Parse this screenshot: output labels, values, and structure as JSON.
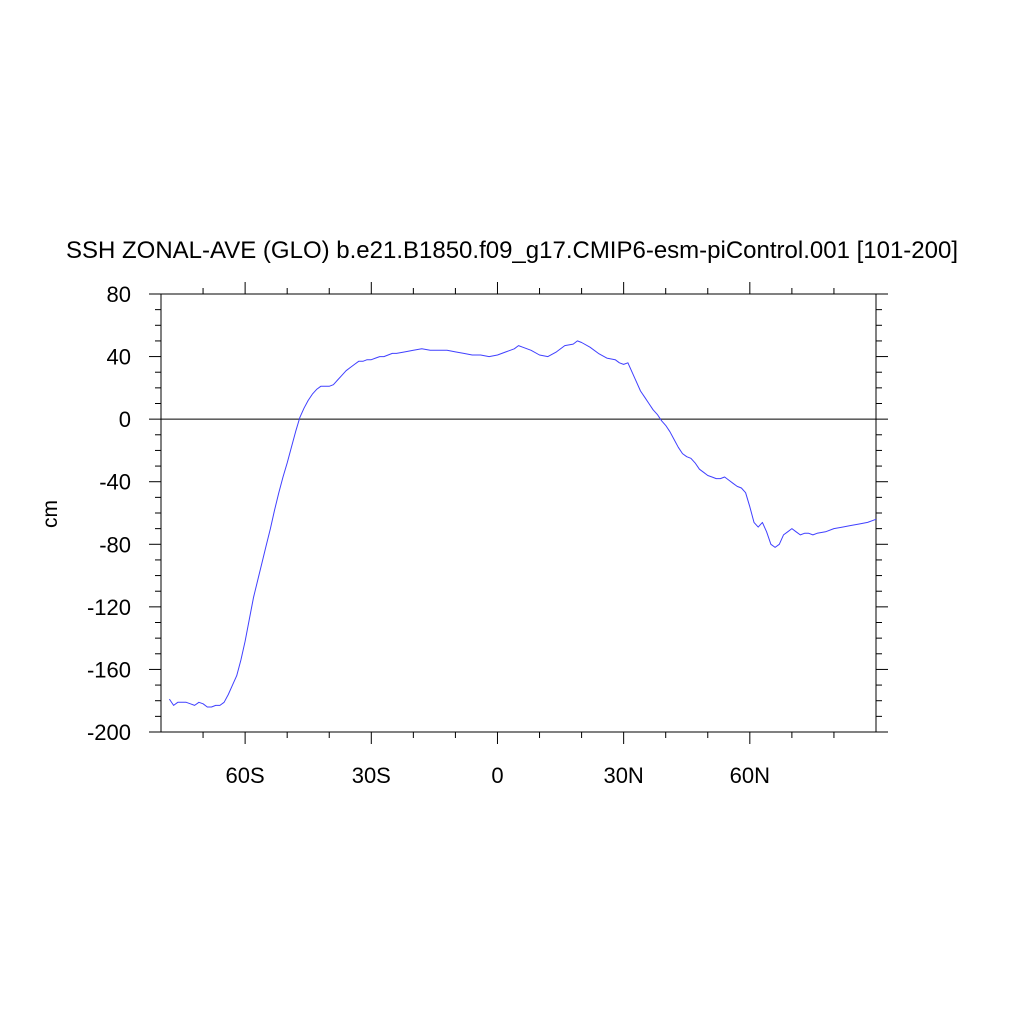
{
  "chart_data": {
    "type": "line",
    "title": "SSH ZONAL-AVE (GLO) b.e21.B1850.f09_g17.CMIP6-esm-piControl.001 [101-200]",
    "xlabel": "",
    "ylabel": "cm",
    "xlim": [
      -80,
      90
    ],
    "ylim": [
      -200,
      80
    ],
    "x_ticks": [
      {
        "value": -60,
        "label": "60S"
      },
      {
        "value": -30,
        "label": "30S"
      },
      {
        "value": 0,
        "label": "0"
      },
      {
        "value": 30,
        "label": "30N"
      },
      {
        "value": 60,
        "label": "60N"
      }
    ],
    "y_ticks": [
      {
        "value": 80,
        "label": "80"
      },
      {
        "value": 40,
        "label": "40"
      },
      {
        "value": 0,
        "label": "0"
      },
      {
        "value": -40,
        "label": "-40"
      },
      {
        "value": -80,
        "label": "-80"
      },
      {
        "value": -120,
        "label": "-120"
      },
      {
        "value": -160,
        "label": "-160"
      },
      {
        "value": -200,
        "label": "-200"
      }
    ],
    "reference_line": 0,
    "grid": false,
    "series": [
      {
        "color": "#4040ff",
        "x": [
          -78,
          -77,
          -76,
          -75,
          -74,
          -73,
          -72,
          -71,
          -70,
          -69,
          -68,
          -67,
          -66,
          -65,
          -64,
          -63,
          -62,
          -61,
          -60,
          -59,
          -58,
          -57,
          -56,
          -55,
          -54,
          -53,
          -52,
          -51,
          -50,
          -49,
          -48,
          -47,
          -46,
          -45,
          -44,
          -43,
          -42,
          -41,
          -40,
          -39,
          -38,
          -37,
          -36,
          -35,
          -34,
          -33,
          -32,
          -31,
          -30,
          -29,
          -28,
          -27,
          -26,
          -25,
          -24,
          -22,
          -20,
          -18,
          -16,
          -14,
          -12,
          -10,
          -8,
          -6,
          -4,
          -2,
          0,
          2,
          4,
          5,
          6,
          8,
          10,
          12,
          14,
          16,
          18,
          19,
          20,
          22,
          24,
          26,
          28,
          29,
          30,
          31,
          32,
          33,
          34,
          35,
          36,
          37,
          38,
          39,
          40,
          41,
          42,
          43,
          44,
          45,
          46,
          47,
          48,
          49,
          50,
          51,
          52,
          53,
          54,
          55,
          56,
          57,
          58,
          59,
          60,
          61,
          62,
          63,
          64,
          65,
          66,
          67,
          68,
          69,
          70,
          71,
          72,
          73,
          74,
          75,
          76,
          78,
          80,
          82,
          84,
          86,
          88,
          90
        ],
        "y": [
          -179,
          -183,
          -181,
          -181,
          -181,
          -182,
          -183,
          -181,
          -182,
          -184,
          -184,
          -183,
          -183,
          -181,
          -176,
          -170,
          -164,
          -154,
          -142,
          -128,
          -114,
          -103,
          -92,
          -81,
          -70,
          -58,
          -47,
          -37,
          -28,
          -18,
          -8,
          1,
          7,
          12,
          16,
          19,
          21,
          21,
          21,
          22,
          25,
          28,
          31,
          33,
          35,
          37,
          37,
          38,
          38,
          39,
          40,
          40,
          41,
          42,
          42,
          43,
          44,
          45,
          44,
          44,
          44,
          43,
          42,
          41,
          41,
          40,
          41,
          43,
          45,
          47,
          46,
          44,
          41,
          40,
          43,
          47,
          48,
          50,
          49,
          46,
          42,
          39,
          38,
          36,
          35,
          36,
          30,
          24,
          18,
          14,
          10,
          6,
          3,
          -1,
          -4,
          -8,
          -13,
          -18,
          -22,
          -24,
          -25,
          -28,
          -32,
          -34,
          -36,
          -37,
          -38,
          -38,
          -37,
          -39,
          -41,
          -43,
          -44,
          -47,
          -56,
          -66,
          -69,
          -66,
          -72,
          -80,
          -82,
          -80,
          -74,
          -72,
          -70,
          -72,
          -74,
          -73,
          -73,
          -74,
          -73,
          -72,
          -70,
          -69,
          -68,
          -67,
          -66,
          -64
        ]
      }
    ]
  }
}
